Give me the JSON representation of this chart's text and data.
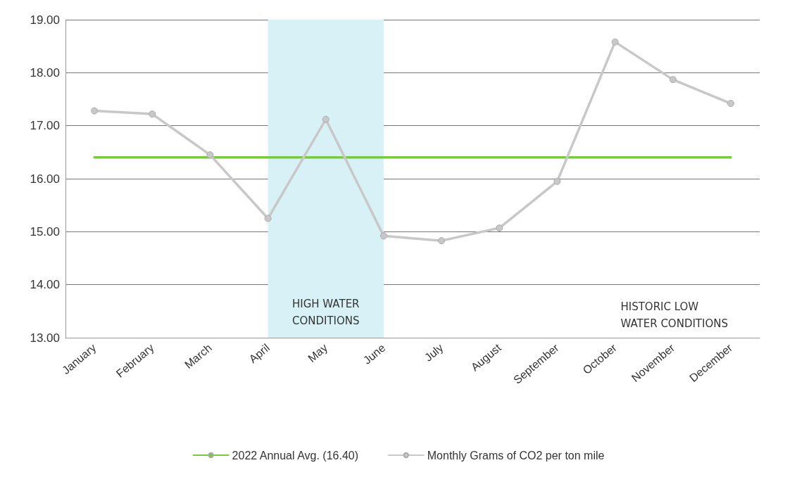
{
  "chart_data": {
    "type": "line",
    "categories": [
      "January",
      "February",
      "March",
      "April",
      "May",
      "June",
      "July",
      "August",
      "September",
      "October",
      "November",
      "December"
    ],
    "series": [
      {
        "name": "2022 Annual Avg. (16.40)",
        "color": "#7ac943",
        "marker": "none",
        "values": [
          16.4,
          16.4,
          16.4,
          16.4,
          16.4,
          16.4,
          16.4,
          16.4,
          16.4,
          16.4,
          16.4,
          16.4
        ]
      },
      {
        "name": "Monthly Grams of CO2 per ton mile",
        "color": "#c8c8c8",
        "values": [
          17.28,
          17.22,
          16.45,
          15.25,
          17.12,
          14.92,
          14.83,
          15.07,
          15.95,
          18.58,
          17.87,
          17.42
        ]
      }
    ],
    "ylim": [
      13,
      19
    ],
    "yticks": [
      {
        "value": 13,
        "label": "13.00"
      },
      {
        "value": 14,
        "label": "14.00"
      },
      {
        "value": 15,
        "label": "15.00"
      },
      {
        "value": 16,
        "label": "16.00"
      },
      {
        "value": 17,
        "label": "17.00"
      },
      {
        "value": 18,
        "label": "18.00"
      },
      {
        "value": 19,
        "label": "19.00"
      }
    ],
    "bands": [
      {
        "axis": "x",
        "from": "April",
        "to": "June",
        "label": "HIGH WATER\nCONDITIONS",
        "color": "#d8f1f6"
      }
    ],
    "annotations": [
      "HISTORIC LOW\nWATER CONDITIONS"
    ],
    "grid": "y",
    "legend": "bottom",
    "marker": "circle",
    "line_style": "solid"
  }
}
